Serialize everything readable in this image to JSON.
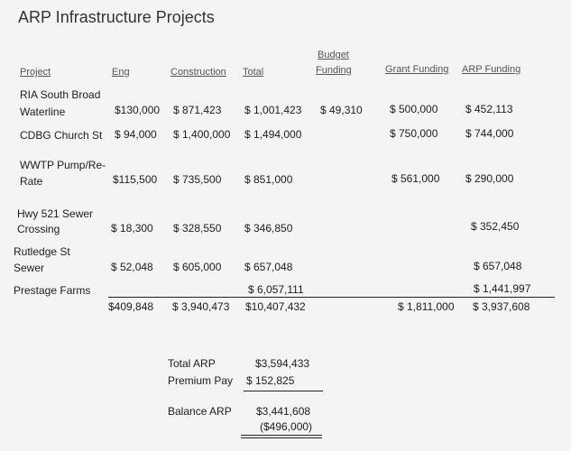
{
  "title": "ARP Infrastructure Projects",
  "headers": {
    "project": "Project",
    "eng": "Eng",
    "construction": "Construction",
    "total": "Total",
    "budget_1": "Budget",
    "budget_2": "Funding",
    "grant": "Grant Funding",
    "arp": "ARP Funding"
  },
  "rows": [
    {
      "project": [
        "RIA South Broad",
        "Waterline"
      ],
      "eng": "$130,000",
      "construction": "$ 871,423",
      "total": "$ 1,001,423",
      "budget": "$ 49,310",
      "grant": "$ 500,000",
      "arp": "$ 452,113"
    },
    {
      "project": [
        "CDBG Church St"
      ],
      "eng": "$ 94,000",
      "construction": "$ 1,400,000",
      "total": "$ 1,494,000",
      "budget": "",
      "grant": "$ 750,000",
      "arp": "$ 744,000"
    },
    {
      "project": [
        "WWTP Pump/Re-",
        "Rate"
      ],
      "eng": "$115,500",
      "construction": "$ 735,500",
      "total": "$ 851,000",
      "budget": "",
      "grant": "$ 561,000",
      "arp": "$ 290,000"
    },
    {
      "project": [
        "Hwy 521 Sewer",
        "Crossing"
      ],
      "eng": "$ 18,300",
      "construction": "$ 328,550",
      "total": "$ 346,850",
      "budget": "",
      "grant": "",
      "arp": "$ 352,450"
    },
    {
      "project": [
        "Rutledge St",
        "Sewer"
      ],
      "eng": "$ 52,048",
      "construction": "$ 605,000",
      "total": "$ 657,048",
      "budget": "",
      "grant": "",
      "arp": "$ 657,048"
    },
    {
      "project": [
        "Prestage Farms"
      ],
      "eng": "",
      "construction": "",
      "total": "$ 6,057,111",
      "budget": "",
      "grant": "",
      "arp": "$ 1,441,997"
    }
  ],
  "totals": {
    "eng": "$409,848",
    "construction": "$ 3,940,473",
    "total": "$10,407,432",
    "grant": "$ 1,811,000",
    "arp": "$ 3,937,608"
  },
  "summary": {
    "total_arp_label": "Total ARP",
    "total_arp_value": "$3,594,433",
    "premium_label": "Premium Pay",
    "premium_value": "$ 152,825",
    "balance_label": "Balance ARP",
    "balance_value": "$3,441,608",
    "balance_diff": "($496,000)"
  }
}
